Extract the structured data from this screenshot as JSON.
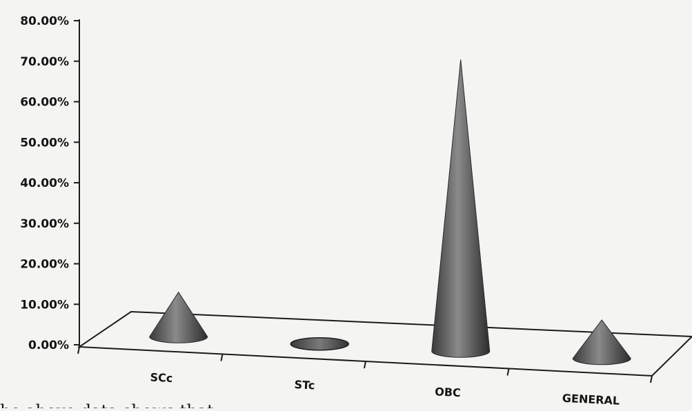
{
  "chart_data": {
    "type": "bar",
    "bar_shape": "3d-cone",
    "categories": [
      "SCc",
      "STc",
      "OBC",
      "GENERAL"
    ],
    "values": [
      11.0,
      0.0,
      72.0,
      9.5
    ],
    "ylim": [
      0,
      80
    ],
    "yticks": [
      "0.00%",
      "10.00%",
      "20.00%",
      "30.00%",
      "40.00%",
      "50.00%",
      "60.00%",
      "70.00%",
      "80.00%"
    ],
    "grid": false,
    "legend": "none",
    "colors": {
      "cone": "#6e6e6e",
      "cone_dark": "#2b2b2b",
      "axis": "#1a1a1a"
    }
  },
  "caption": "he above data shows that"
}
